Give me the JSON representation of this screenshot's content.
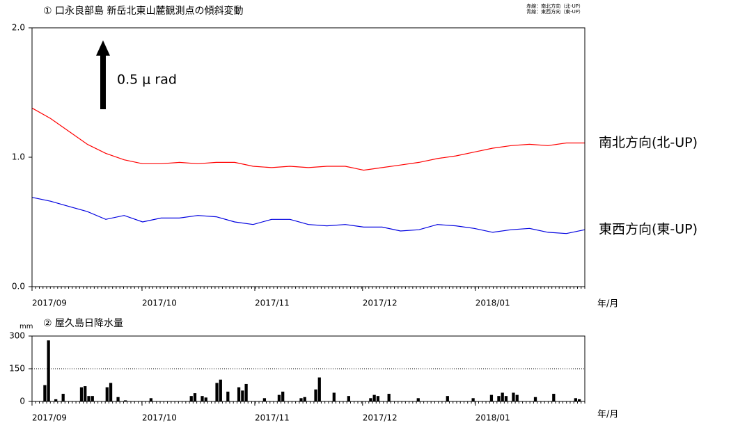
{
  "chart_data": [
    {
      "type": "line",
      "title": "① 口永良部島 新岳北東山麓観測点の傾斜変動",
      "legend_lines": [
        "赤線：南北方向（北-UP）",
        "青線：東西方向（東-UP）"
      ],
      "annotation": "0.5 μ rad",
      "x_label": "年/月",
      "xticks": [
        "2017/09",
        "2017/10",
        "2017/11",
        "2017/12",
        "2018/01"
      ],
      "ylim": [
        0,
        2
      ],
      "yticks": [
        {
          "value": 0,
          "label": "0.0"
        },
        {
          "value": 1,
          "label": "1.0"
        },
        {
          "value": 2,
          "label": "2.0"
        }
      ],
      "grid": false,
      "series": [
        {
          "name": "南北方向(北-UP)",
          "color": "#ff0000",
          "label_color": "#ff0000",
          "values": [
            1.38,
            1.3,
            1.2,
            1.1,
            1.03,
            0.98,
            0.95,
            0.95,
            0.96,
            0.95,
            0.96,
            0.96,
            0.93,
            0.92,
            0.93,
            0.92,
            0.93,
            0.93,
            0.9,
            0.92,
            0.94,
            0.96,
            0.99,
            1.01,
            1.04,
            1.07,
            1.09,
            1.1,
            1.09,
            1.11,
            1.11
          ]
        },
        {
          "name": "東西方向(東-UP)",
          "color": "#0000e0",
          "label_color": "#1a73c8",
          "values": [
            0.69,
            0.66,
            0.62,
            0.58,
            0.52,
            0.55,
            0.5,
            0.53,
            0.53,
            0.55,
            0.54,
            0.5,
            0.48,
            0.52,
            0.52,
            0.48,
            0.47,
            0.48,
            0.46,
            0.46,
            0.43,
            0.44,
            0.48,
            0.47,
            0.45,
            0.42,
            0.44,
            0.45,
            0.42,
            0.41,
            0.44
          ]
        }
      ]
    },
    {
      "type": "bar",
      "title": "② 屋久島日降水量",
      "y_label": "mm",
      "x_label": "年/月",
      "xticks": [
        "2017/09",
        "2017/10",
        "2017/11",
        "2017/12",
        "2018/01"
      ],
      "ylim": [
        0,
        300
      ],
      "yticks": [
        0,
        150,
        300
      ],
      "grid": true,
      "color": "#000000",
      "values": [
        0,
        0,
        0,
        75,
        280,
        0,
        10,
        0,
        35,
        0,
        0,
        0,
        0,
        65,
        70,
        25,
        25,
        0,
        0,
        0,
        65,
        85,
        0,
        20,
        0,
        5,
        0,
        0,
        0,
        0,
        0,
        0,
        15,
        0,
        0,
        0,
        0,
        0,
        0,
        0,
        0,
        0,
        0,
        25,
        38,
        0,
        25,
        18,
        0,
        0,
        85,
        100,
        0,
        45,
        0,
        0,
        65,
        50,
        80,
        0,
        0,
        0,
        0,
        15,
        0,
        0,
        0,
        30,
        45,
        0,
        0,
        0,
        0,
        15,
        20,
        0,
        0,
        55,
        110,
        0,
        0,
        0,
        40,
        0,
        0,
        0,
        25,
        0,
        0,
        0,
        0,
        0,
        15,
        30,
        25,
        0,
        0,
        35,
        0,
        0,
        0,
        0,
        0,
        0,
        0,
        15,
        0,
        0,
        0,
        0,
        0,
        0,
        0,
        25,
        0,
        0,
        0,
        0,
        0,
        0,
        15,
        0,
        0,
        0,
        0,
        30,
        0,
        25,
        40,
        25,
        0,
        40,
        30,
        0,
        0,
        0,
        0,
        20,
        0,
        0,
        0,
        0,
        35,
        0,
        0,
        0,
        0,
        0,
        15,
        10,
        0
      ]
    }
  ]
}
